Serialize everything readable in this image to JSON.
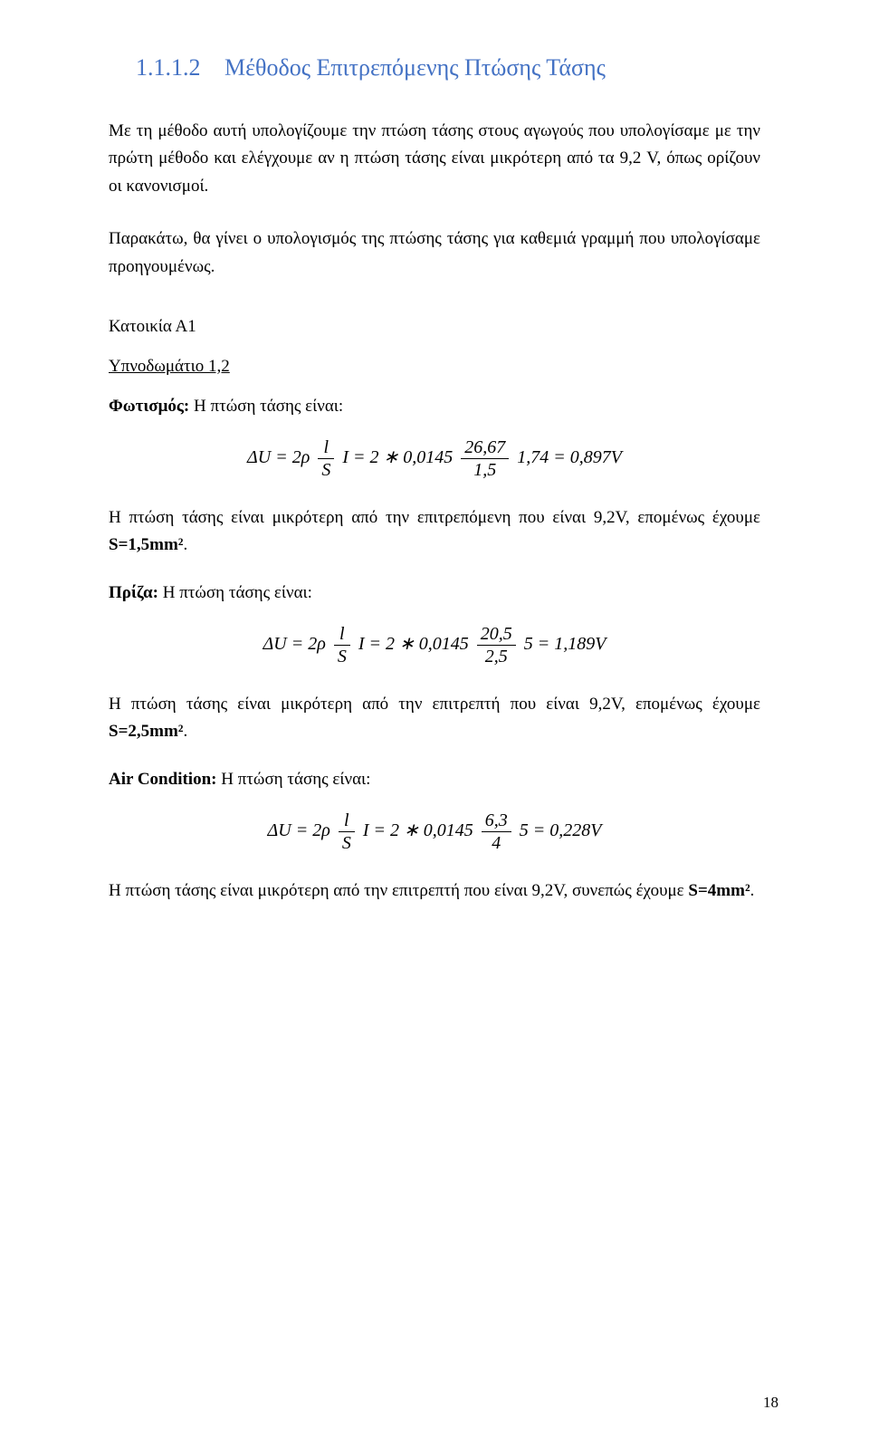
{
  "heading": {
    "number": "1.1.1.2",
    "title": "Μέθοδος Επιτρεπόμενης Πτώσης Τάσης"
  },
  "intro1": "Με τη μέθοδο αυτή υπολογίζουμε την πτώση τάσης στους αγωγούς που υπολογίσαμε με την πρώτη μέθοδο και ελέγχουμε αν η πτώση τάσης είναι μικρότερη από τα 9,2 V, όπως ορίζουν οι κανονισμοί.",
  "intro2": "Παρακάτω, θα γίνει ο υπολογισμός της πτώσης τάσης για καθεμιά γραμμή που υπολογίσαμε προηγουμένως.",
  "section": "Κατοικία Α1",
  "subsection": "Υπνοδωμάτιο 1,2",
  "items": [
    {
      "label_bold": "Φωτισμός:",
      "label_rest": " Η πτώση τάσης είναι:",
      "eq": {
        "prefix": "ΔU = 2ρ",
        "frac1_num": "l",
        "frac1_den": "S",
        "mid1": " I = 2 ∗ 0,0145 ",
        "frac2_num": "26,67",
        "frac2_den": "1,5",
        "mid2": " 1,74 = 0,897V"
      },
      "result_prefix": "Η πτώση τάσης είναι μικρότερη από την επιτρεπόμενη που είναι 9,2V, επομένως έχουμε ",
      "result_bold": "S=1,5mm²",
      "result_suffix": "."
    },
    {
      "label_bold": "Πρίζα:",
      "label_rest": " Η πτώση τάσης είναι:",
      "eq": {
        "prefix": "ΔU = 2ρ",
        "frac1_num": "l",
        "frac1_den": "S",
        "mid1": " I = 2 ∗ 0,0145 ",
        "frac2_num": "20,5",
        "frac2_den": "2,5",
        "mid2": " 5 = 1,189V"
      },
      "result_prefix": "Η πτώση τάσης είναι μικρότερη από την επιτρεπτή που είναι 9,2V, επομένως έχουμε ",
      "result_bold": "S=2,5mm²",
      "result_suffix": "."
    },
    {
      "label_bold": "Air Condition:",
      "label_rest": " Η πτώση τάσης είναι:",
      "eq": {
        "prefix": "ΔU = 2ρ",
        "frac1_num": "l",
        "frac1_den": "S",
        "mid1": " I = 2 ∗ 0,0145 ",
        "frac2_num": "6,3",
        "frac2_den": "4",
        "mid2": " 5 = 0,228V"
      },
      "result_prefix": "Η πτώση τάσης είναι μικρότερη από την επιτρεπτή που είναι 9,2V, συνεπώς έχουμε ",
      "result_bold": "S=4mm²",
      "result_suffix": "."
    }
  ],
  "page_number": "18"
}
